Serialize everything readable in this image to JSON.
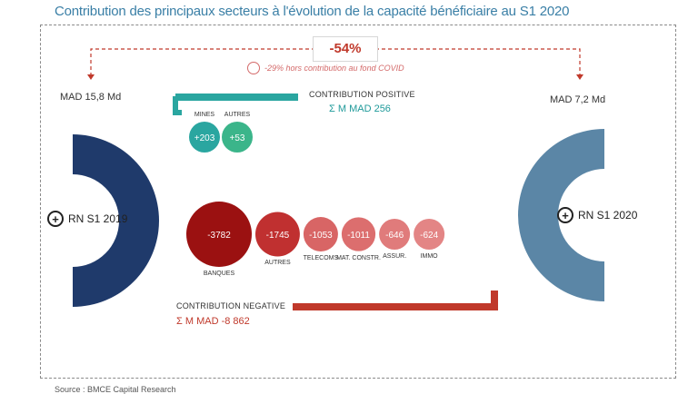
{
  "title": "Contribution des principaux secteurs à l'évolution de la capacité bénéficiaire au S1 2020",
  "change_pct": "-54%",
  "covid_note": "-29% hors contribution au fond COVID",
  "left": {
    "amount": "MAD 15,8 Md",
    "label": "RN S1 2019",
    "color": "#1f3a6b"
  },
  "right": {
    "amount": "MAD 7,2 Md",
    "label": "RN S1 2020",
    "color": "#5b86a6"
  },
  "positive": {
    "heading": "CONTRIBUTION POSITIVE",
    "sum": "Σ M MAD 256",
    "color": "#2aa6a0"
  },
  "negative": {
    "heading": "CONTRIBUTION NEGATIVE",
    "sum": "Σ M MAD -8 862",
    "color": "#c0392b"
  },
  "source": "Source : BMCE Capital Research",
  "chart_data": {
    "type": "bubble",
    "title": "Contribution des principaux secteurs à l'évolution de la capacité bénéficiaire au S1 2020",
    "positive": [
      {
        "label": "MINES",
        "value": 203,
        "display": "+203"
      },
      {
        "label": "AUTRES",
        "value": 53,
        "display": "+53"
      }
    ],
    "negative": [
      {
        "label": "BANQUES",
        "value": -3782,
        "display": "-3782"
      },
      {
        "label": "AUTRES",
        "value": -1745,
        "display": "-1745"
      },
      {
        "label": "TELECOMS",
        "value": -1053,
        "display": "-1053"
      },
      {
        "label": "MAT. CONSTR.",
        "value": -1011,
        "display": "-1011"
      },
      {
        "label": "ASSUR.",
        "value": -646,
        "display": "-646"
      },
      {
        "label": "IMMO",
        "value": -624,
        "display": "-624"
      }
    ],
    "totals": {
      "positive": 256,
      "negative": -8862
    },
    "start": {
      "label": "RN S1 2019",
      "amount": "MAD 15,8 Md"
    },
    "end": {
      "label": "RN S1 2020",
      "amount": "MAD 7,2 Md"
    },
    "change": "-54%"
  }
}
